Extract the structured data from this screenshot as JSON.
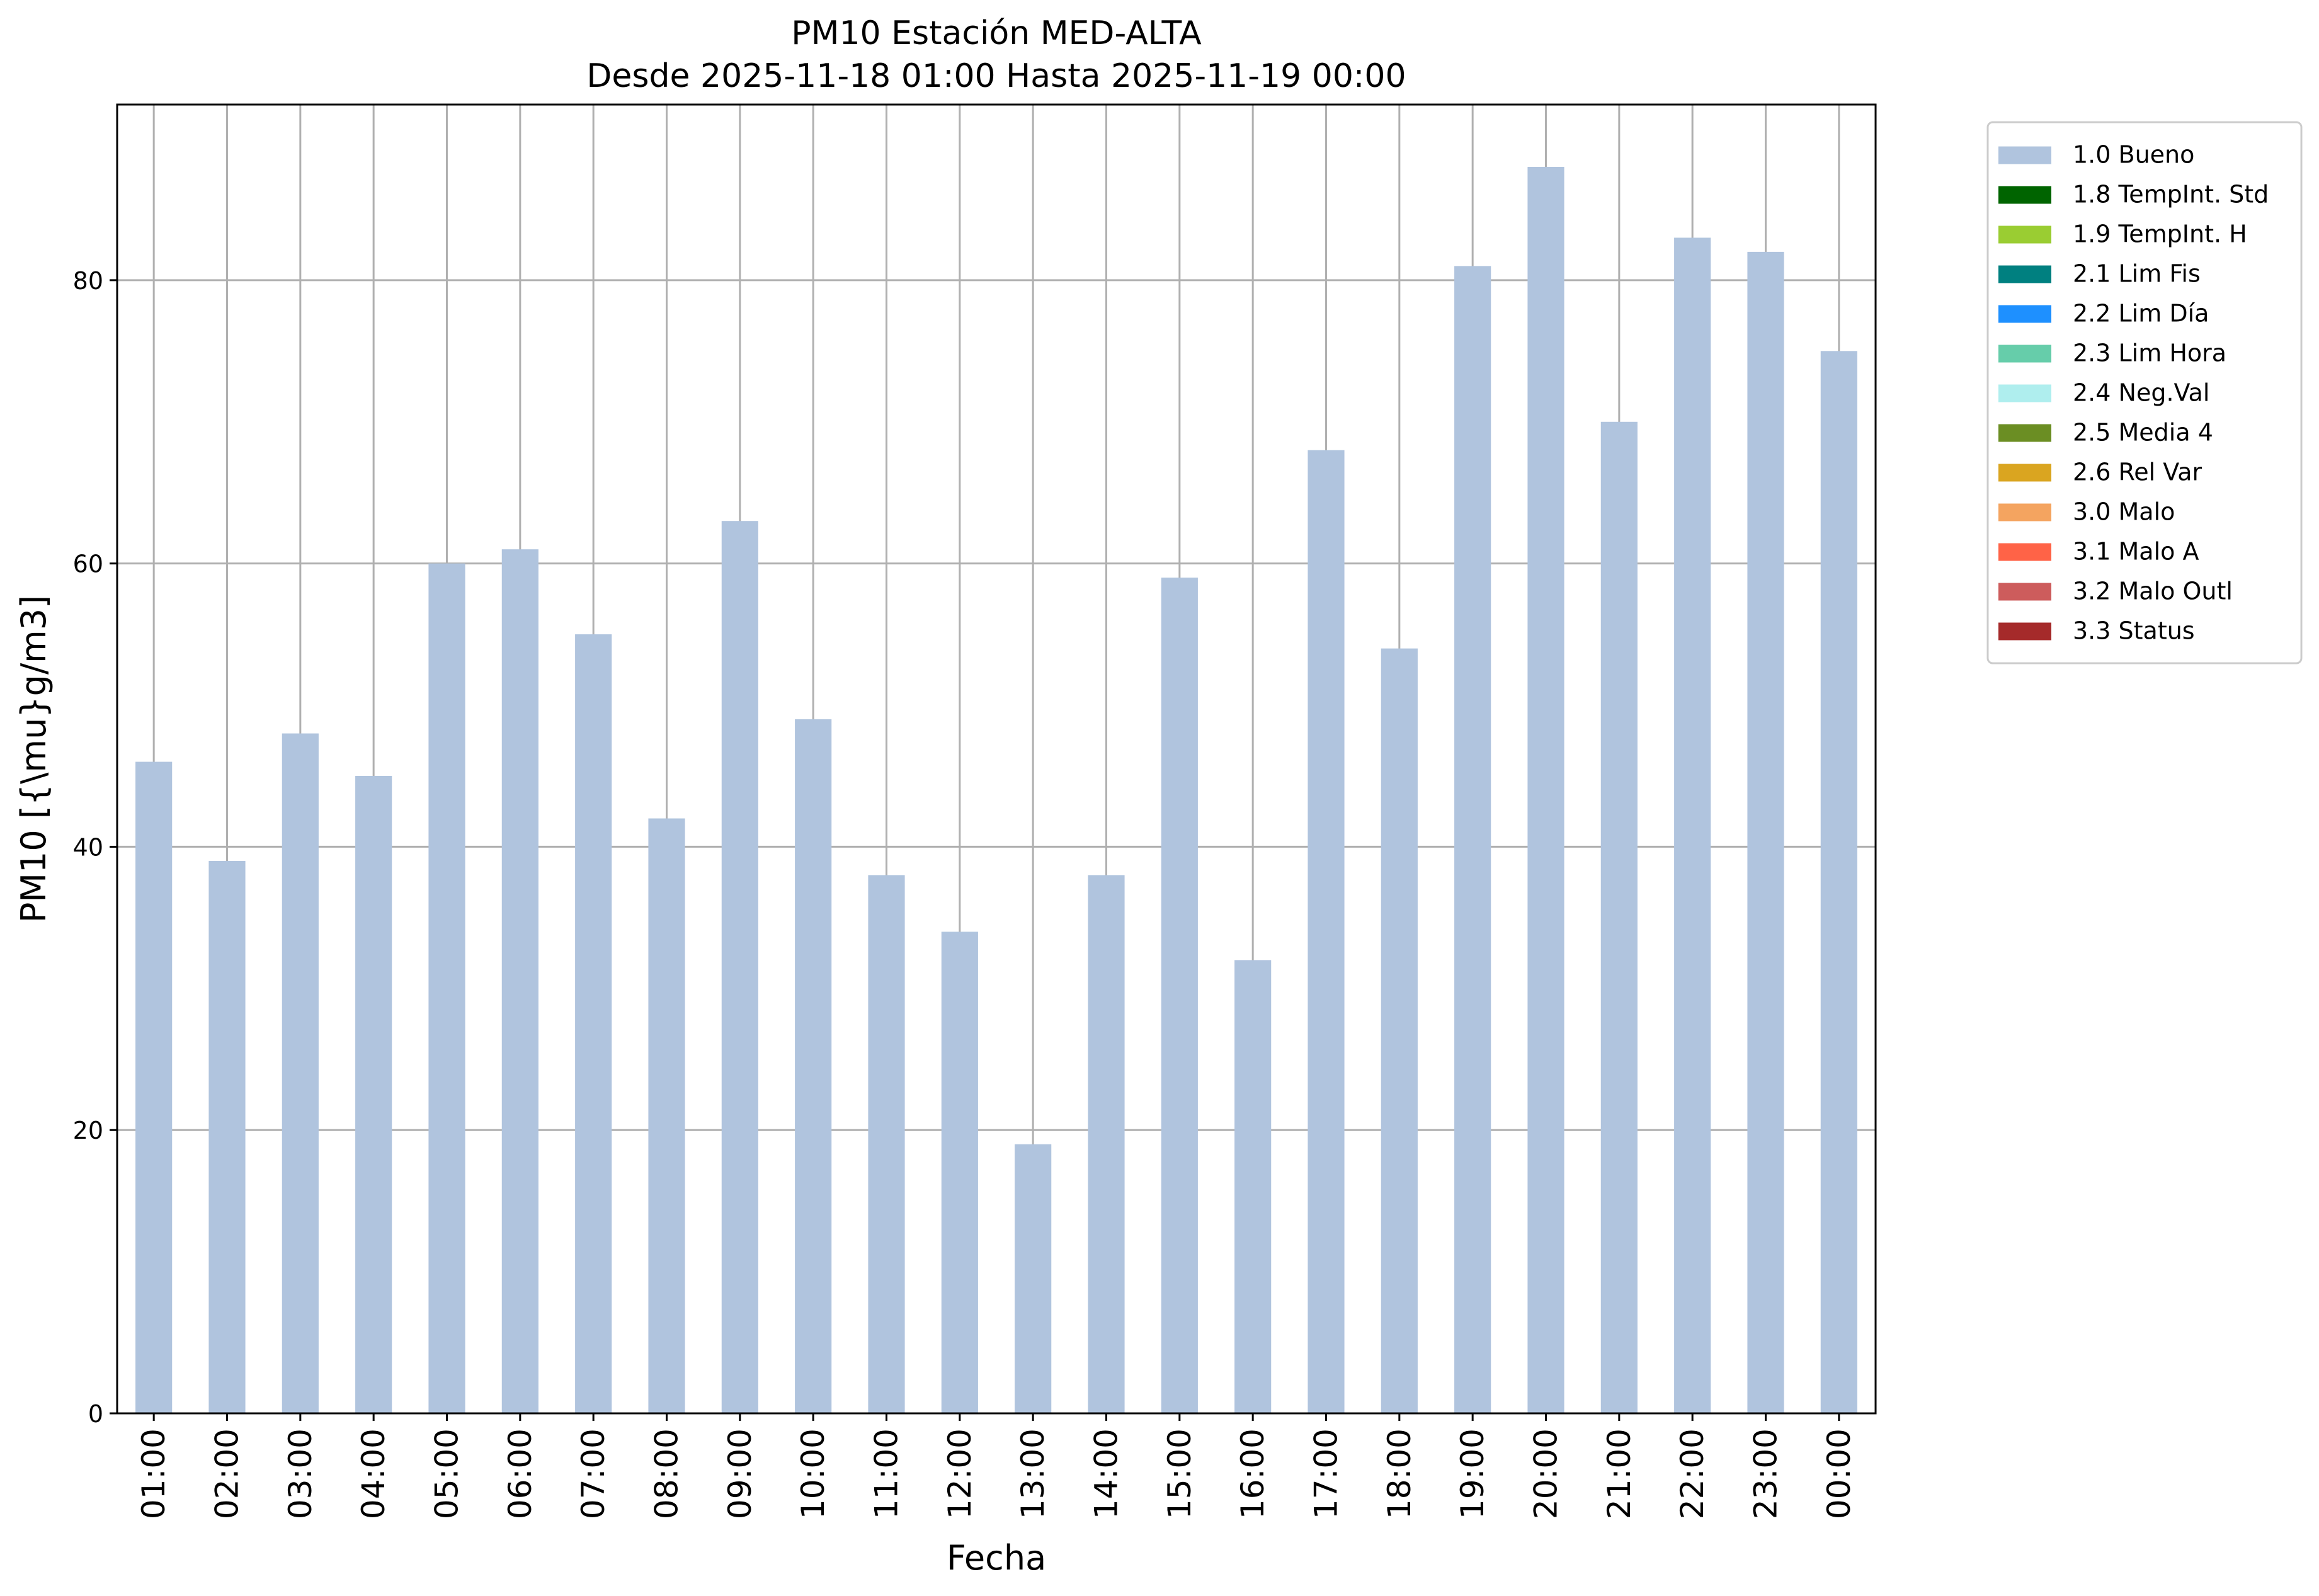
{
  "chart_data": {
    "type": "bar",
    "title": "PM10 Estación MED-ALTA",
    "subtitle": "Desde 2025-11-18 01:00 Hasta 2025-11-19 00:00",
    "xlabel": "Fecha",
    "ylabel": "PM10 [{\\mu}g/m3]",
    "categories": [
      "01:00",
      "02:00",
      "03:00",
      "04:00",
      "05:00",
      "06:00",
      "07:00",
      "08:00",
      "09:00",
      "10:00",
      "11:00",
      "12:00",
      "13:00",
      "14:00",
      "15:00",
      "16:00",
      "17:00",
      "18:00",
      "19:00",
      "20:00",
      "21:00",
      "22:00",
      "23:00",
      "00:00"
    ],
    "series": [
      {
        "name": "1.0 Bueno",
        "color": "#b0c4de",
        "values": [
          46,
          39,
          48,
          45,
          60,
          61,
          55,
          42,
          63,
          49,
          38,
          34,
          19,
          38,
          59,
          32,
          68,
          54,
          81,
          88,
          70,
          83,
          82,
          75
        ]
      }
    ],
    "ylim": [
      0,
      92.4
    ],
    "yticks": [
      "0",
      "20",
      "40",
      "60",
      "80"
    ],
    "grid": true,
    "legend_placement": "outside-top-right",
    "legend": [
      {
        "label": "1.0 Bueno",
        "color": "#b0c4de"
      },
      {
        "label": "1.8 TempInt. Std",
        "color": "#006400"
      },
      {
        "label": "1.9 TempInt. H",
        "color": "#9acd32"
      },
      {
        "label": "2.1 Lim Fis",
        "color": "#008080"
      },
      {
        "label": "2.2 Lim Día",
        "color": "#1e90ff"
      },
      {
        "label": "2.3 Lim Hora",
        "color": "#66cdaa"
      },
      {
        "label": "2.4 Neg.Val",
        "color": "#afeeee"
      },
      {
        "label": "2.5 Media 4",
        "color": "#6b8e23"
      },
      {
        "label": "2.6 Rel Var",
        "color": "#daa520"
      },
      {
        "label": "3.0 Malo",
        "color": "#f4a460"
      },
      {
        "label": "3.1 Malo A",
        "color": "#ff6347"
      },
      {
        "label": "3.2 Malo Outl",
        "color": "#cd5c5c"
      },
      {
        "label": "3.3 Status",
        "color": "#a52a2a"
      }
    ]
  }
}
